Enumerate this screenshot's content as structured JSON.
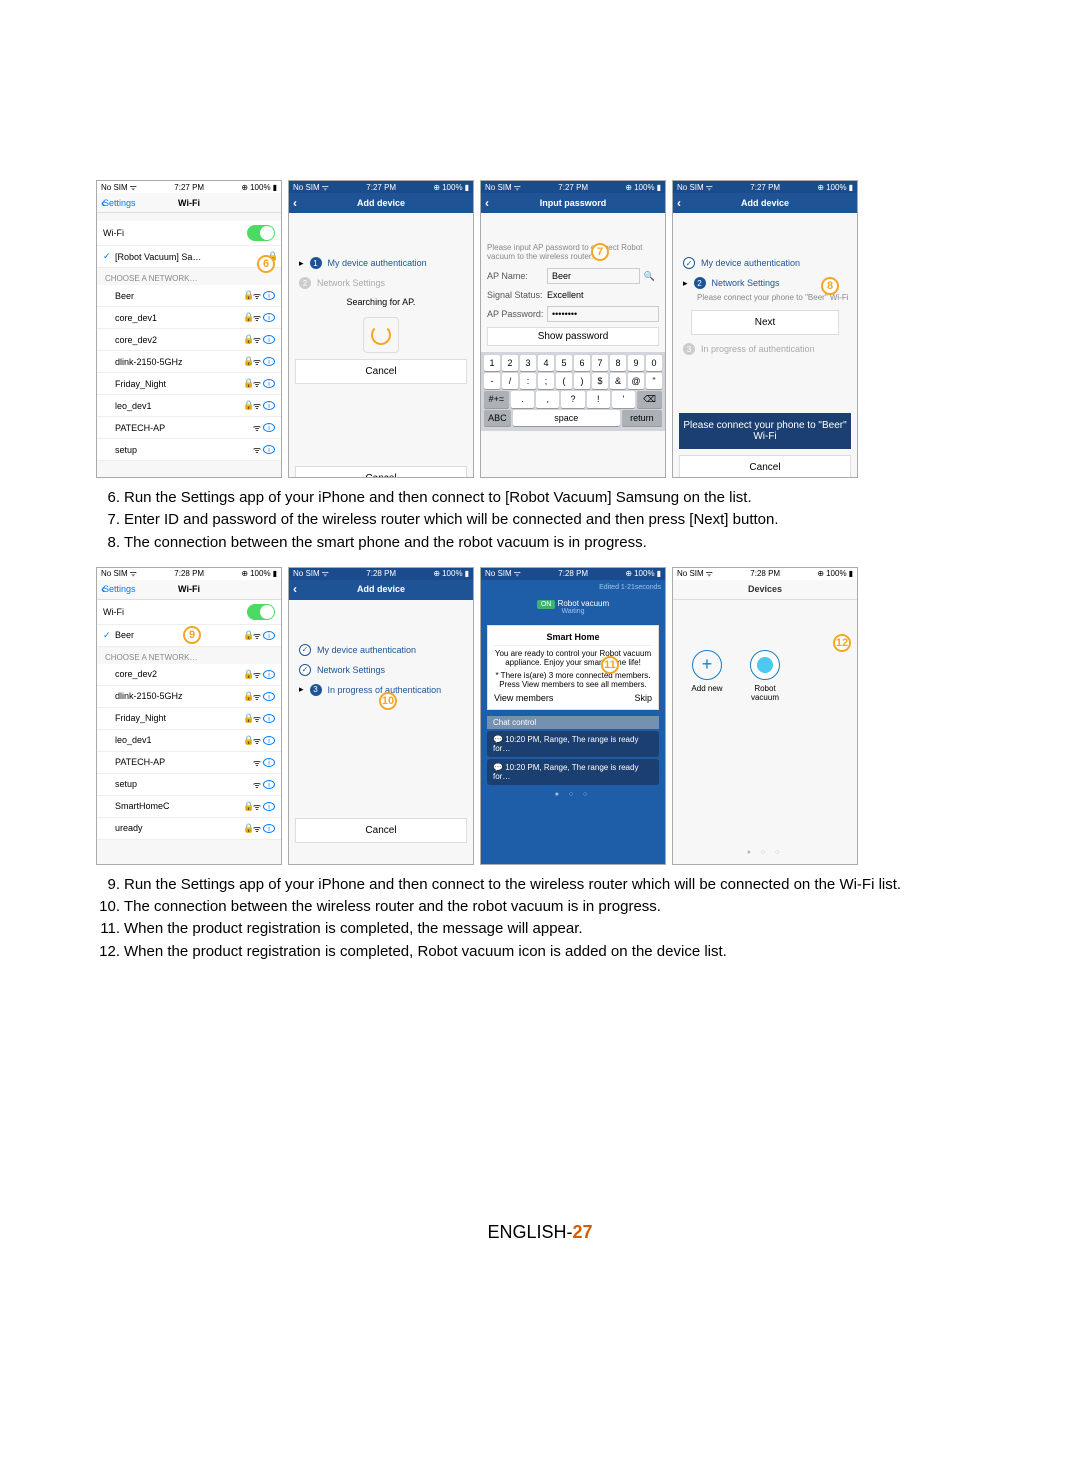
{
  "statusbar": {
    "carrier": "No SIM",
    "time": "7:27 PM",
    "time2": "7:28 PM",
    "battery": "100%",
    "wifi_icon": "wifi-icon"
  },
  "colors": {
    "accent_orange": "#f5a623",
    "ios_blue": "#007aff",
    "app_blue": "#1e5496",
    "dark_blue": "#1a3f70",
    "green": "#4cd964"
  },
  "rowA": {
    "s1": {
      "nav_back": "Settings",
      "nav_title": "Wi-Fi",
      "wifi_label": "Wi-Fi",
      "connected": "[Robot Vacuum] Sa…",
      "section": "CHOOSE A NETWORK…",
      "networks": [
        "Beer",
        "core_dev1",
        "core_dev2",
        "dlink-2150-5GHz",
        "Friday_Night",
        "leo_dev1",
        "PATECH-AP",
        "setup"
      ],
      "badge": 6,
      "locked": [
        true,
        true,
        true,
        true,
        true,
        true,
        false,
        false
      ]
    },
    "s2": {
      "nav_title": "Add device",
      "step1": "My device authentication",
      "step2": "Network Settings",
      "searching": "Searching for AP.",
      "cancel": "Cancel",
      "cancel2": "Cancel"
    },
    "s3": {
      "nav_title": "Input password",
      "hint": "Please input AP password to connect Robot vacuum to the wireless router.",
      "ap_name_lbl": "AP Name:",
      "ap_name": "Beer",
      "signal_lbl": "Signal Status:",
      "signal": "Excellent",
      "pw_lbl": "AP Password:",
      "pw": "••••••••",
      "show_pw": "Show password",
      "badge": 7,
      "keys_r1": [
        "1",
        "2",
        "3",
        "4",
        "5",
        "6",
        "7",
        "8",
        "9",
        "0"
      ],
      "keys_r2": [
        "-",
        "/",
        ":",
        ";",
        "(",
        ")",
        "$",
        "&",
        "@",
        "\""
      ],
      "keys_r3_a": "#+=",
      "keys_r3": [
        ".",
        ",",
        "?",
        "!",
        "'"
      ],
      "keys_r3_b": "⌫",
      "kb_abc": "ABC",
      "kb_space": "space",
      "kb_return": "return"
    },
    "s4": {
      "nav_title": "Add device",
      "step1": "My device authentication",
      "step2": "Network Settings",
      "hint": "Please connect your phone to \"Beer\" Wi-Fi",
      "next": "Next",
      "step3": "In progress of authentication",
      "hint2": "Please connect your phone to \"Beer\" Wi-Fi",
      "cancel": "Cancel",
      "badge": 8
    }
  },
  "instrA": {
    "i6": "Run the Settings app of your iPhone and then connect to [Robot Vacuum] Samsung on the list.",
    "i7": "Enter ID and password of the wireless router which will be connected and then press [Next] button.",
    "i8": "The connection between the smart phone and the robot vacuum is in progress."
  },
  "rowB": {
    "s1": {
      "nav_back": "Settings",
      "nav_title": "Wi-Fi",
      "wifi_label": "Wi-Fi",
      "connected": "Beer",
      "section": "CHOOSE A NETWORK…",
      "networks": [
        "core_dev2",
        "dlink-2150-5GHz",
        "Friday_Night",
        "leo_dev1",
        "PATECH-AP",
        "setup",
        "SmartHomeC",
        "uready"
      ],
      "badge": 9,
      "locked": [
        true,
        true,
        true,
        true,
        false,
        false,
        true,
        true
      ]
    },
    "s2": {
      "nav_title": "Add device",
      "step1": "My device authentication",
      "step2": "Network Settings",
      "step3": "In progress of authentication",
      "cancel": "Cancel",
      "badge": 10
    },
    "s3": {
      "banner_sub": "Edited 1-21seconds",
      "on": "ON",
      "title": "Robot vacuum",
      "waiting": "Waiting",
      "card_title": "Smart Home",
      "card_body": "You are ready to control your Robot vacuum appliance. Enjoy your smart home life!",
      "card_note": "* There is(are) 3 more connected members. Press View members to see all members.",
      "view": "View members",
      "skip": "Skip",
      "chat_hdr": "Chat control",
      "chat1": "10:20 PM, Range, The range is ready for…",
      "chat2": "10:20 PM, Range, The range is ready for…",
      "badge": 11
    },
    "s4": {
      "nav_title": "Devices",
      "addnew": "Add new",
      "robot": "Robot vacuum",
      "badge": 12
    }
  },
  "instrB": {
    "i9": "Run the Settings app of your iPhone and then connect to the wireless router which will be connected on the Wi-Fi list.",
    "i10": "The connection between the wireless router and the robot vacuum is in progress.",
    "i11": "When the product registration is completed, the message will appear.",
    "i12": "When the product registration is completed, Robot vacuum icon is added on the device list."
  },
  "footer": {
    "lang": "ENGLISH-",
    "page": "27"
  }
}
